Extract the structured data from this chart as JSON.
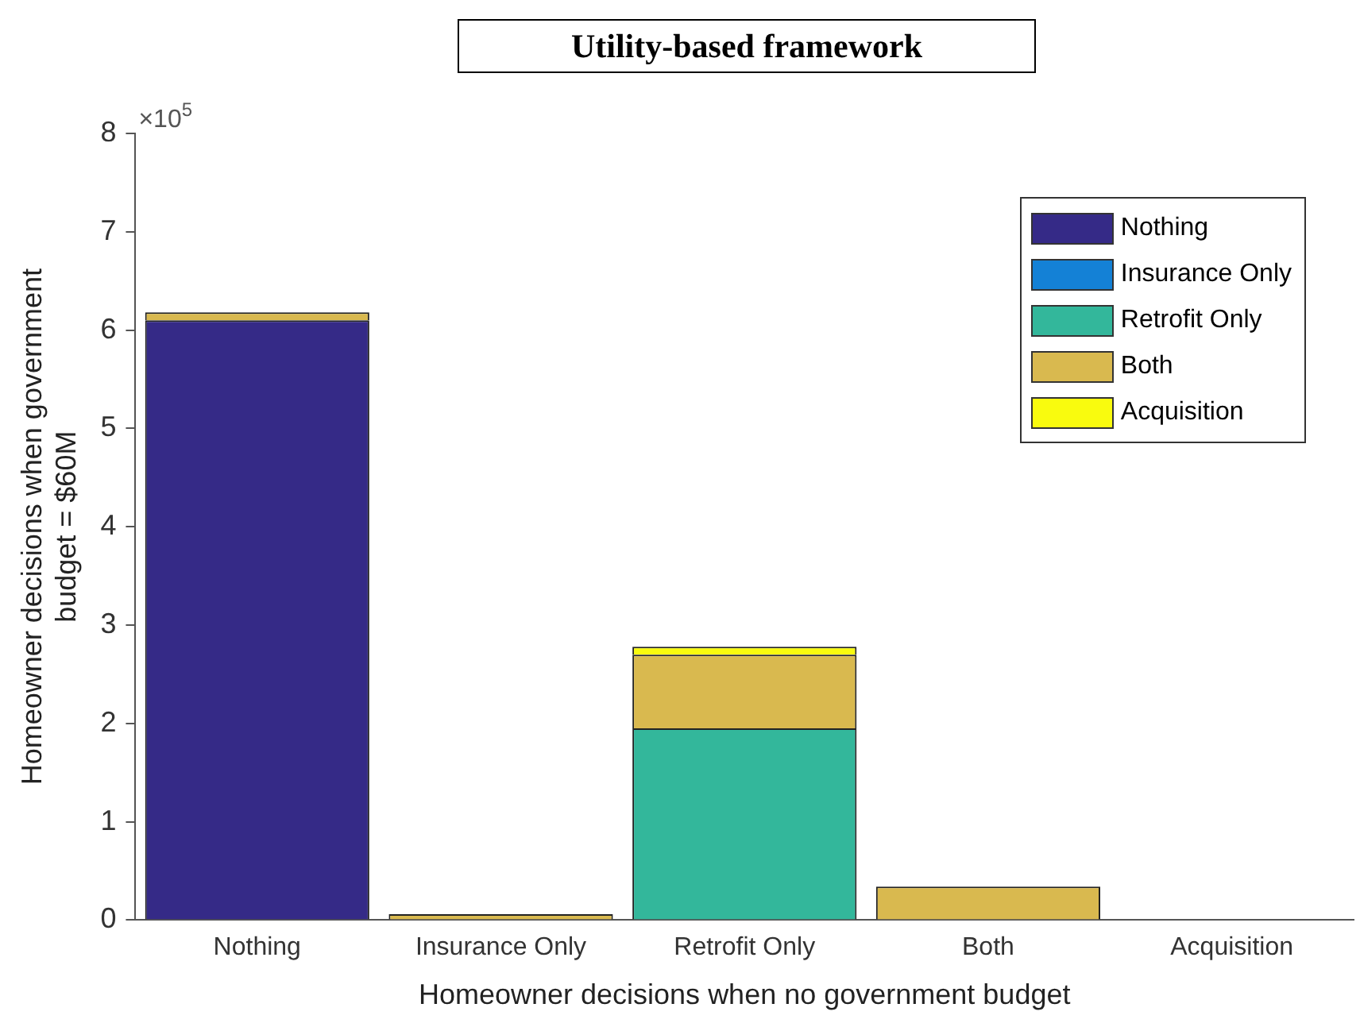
{
  "chart_data": {
    "type": "bar",
    "title": "Utility-based framework",
    "xlabel": "Homeowner decisions when no government budget",
    "ylabel": "Homeowner decisions when government budget = $60M",
    "categories": [
      "Nothing",
      "Insurance Only",
      "Retrofit Only",
      "Both",
      "Acquisition"
    ],
    "stacked": true,
    "series": [
      {
        "name": "Nothing",
        "color": "#352a87",
        "values": [
          6.1,
          null,
          null,
          null,
          null
        ]
      },
      {
        "name": "Insurance Only",
        "color": "#1481d6",
        "values": [
          null,
          null,
          null,
          null,
          null
        ]
      },
      {
        "name": "Retrofit Only",
        "color": "#33b79b",
        "values": [
          null,
          null,
          1.95,
          null,
          null
        ]
      },
      {
        "name": "Both",
        "color": "#d9b94f",
        "values": [
          0.08,
          0.06,
          0.75,
          0.34,
          null
        ]
      },
      {
        "name": "Acquisition",
        "color": "#f9fb0e",
        "values": [
          null,
          null,
          0.08,
          null,
          null
        ]
      }
    ],
    "ylim": [
      0,
      8
    ],
    "yticks": [
      0,
      1,
      2,
      3,
      4,
      5,
      6,
      7,
      8
    ],
    "annotations": [
      "×10$^{5}$"
    ],
    "grid": false,
    "legend": "top right"
  }
}
